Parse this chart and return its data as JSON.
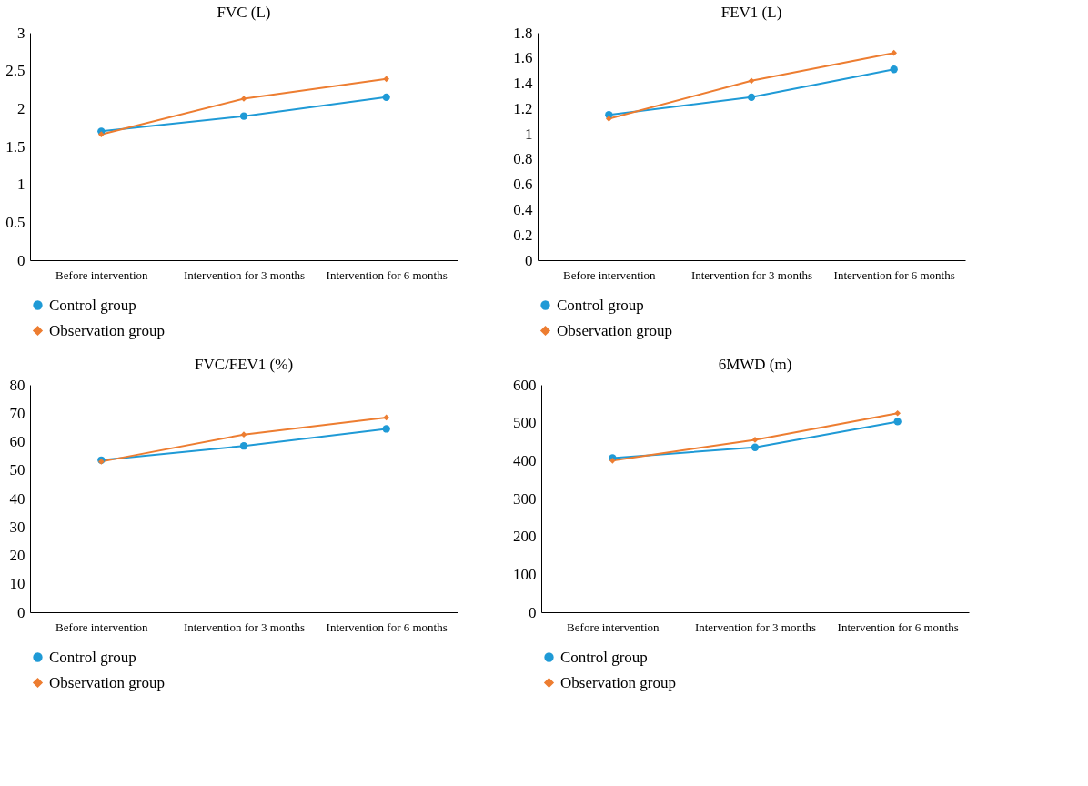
{
  "chart_data": [
    {
      "type": "line",
      "title": "FVC (L)",
      "categories": [
        "Before intervention",
        "Intervention for 3 months",
        "Intervention for 6 months"
      ],
      "ylim": [
        0,
        3
      ],
      "yticks": [
        0,
        0.5,
        1,
        1.5,
        2,
        2.5,
        3
      ],
      "legend": "bottom",
      "grid": false,
      "series": [
        {
          "name": "Control group",
          "color": "#1f9ad6",
          "marker": "circle",
          "values": [
            1.7,
            1.9,
            2.15
          ]
        },
        {
          "name": "Observation group",
          "color": "#ed7d31",
          "marker": "diamond",
          "values": [
            1.66,
            2.13,
            2.39
          ]
        }
      ]
    },
    {
      "type": "line",
      "title": "FEV1 (L)",
      "categories": [
        "Before intervention",
        "Intervention for 3 months",
        "Intervention for 6 months"
      ],
      "ylim": [
        0,
        1.8
      ],
      "yticks": [
        0,
        0.2,
        0.4,
        0.6,
        0.8,
        1,
        1.2,
        1.4,
        1.6,
        1.8
      ],
      "legend": "bottom",
      "grid": false,
      "series": [
        {
          "name": "Control group",
          "color": "#1f9ad6",
          "marker": "circle",
          "values": [
            1.15,
            1.29,
            1.51
          ]
        },
        {
          "name": "Observation group",
          "color": "#ed7d31",
          "marker": "diamond",
          "values": [
            1.12,
            1.42,
            1.64
          ]
        }
      ]
    },
    {
      "type": "line",
      "title": "FVC/FEV1 (%)",
      "categories": [
        "Before intervention",
        "Intervention for 3 months",
        "Intervention for 6 months"
      ],
      "ylim": [
        0,
        80
      ],
      "yticks": [
        0,
        10,
        20,
        30,
        40,
        50,
        60,
        70,
        80
      ],
      "legend": "bottom",
      "grid": false,
      "series": [
        {
          "name": "Control group",
          "color": "#1f9ad6",
          "marker": "circle",
          "values": [
            53.5,
            58.5,
            64.5
          ]
        },
        {
          "name": "Observation group",
          "color": "#ed7d31",
          "marker": "diamond",
          "values": [
            53,
            62.5,
            68.5
          ]
        }
      ]
    },
    {
      "type": "line",
      "title": "6MWD (m)",
      "categories": [
        "Before intervention",
        "Intervention for 3 months",
        "Intervention for 6 months"
      ],
      "ylim": [
        0,
        600
      ],
      "yticks": [
        0,
        100,
        200,
        300,
        400,
        500,
        600
      ],
      "legend": "bottom",
      "grid": false,
      "series": [
        {
          "name": "Control group",
          "color": "#1f9ad6",
          "marker": "circle",
          "values": [
            407,
            435,
            503
          ]
        },
        {
          "name": "Observation group",
          "color": "#ed7d31",
          "marker": "diamond",
          "values": [
            400,
            455,
            525
          ]
        }
      ]
    }
  ]
}
